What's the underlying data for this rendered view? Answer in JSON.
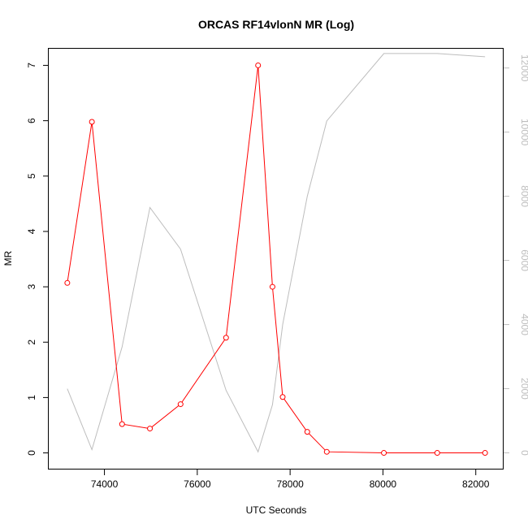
{
  "chart_data": {
    "type": "line",
    "title": "ORCAS RF14vlonN MR (Log)",
    "xlabel": "UTC Seconds",
    "ylabel": "MR",
    "ylabel_right": "",
    "xlim": [
      72800,
      82600
    ],
    "ylim": [
      -0.3,
      7.3
    ],
    "ylim_right": [
      -520,
      12600
    ],
    "x_ticks": [
      "74000",
      "76000",
      "78000",
      "80000",
      "82000"
    ],
    "y_ticks": [
      "0",
      "1",
      "2",
      "3",
      "4",
      "5",
      "6",
      "7"
    ],
    "y_right_ticks": [
      "0",
      "2000",
      "4000",
      "6000",
      "8000",
      "10000",
      "12000"
    ],
    "grid": false,
    "series": [
      {
        "color": "#ff0000",
        "marker": "open-circle",
        "axis": "left",
        "x": [
          73200,
          73730,
          74380,
          74980,
          75640,
          76620,
          77310,
          77620,
          77840,
          78370,
          78790,
          80020,
          81170,
          82200
        ],
        "values": [
          3.07,
          5.98,
          0.52,
          0.44,
          0.88,
          2.08,
          7.0,
          3.0,
          1.01,
          0.38,
          0.02,
          0.0,
          0.0,
          0.0
        ]
      },
      {
        "color": "#bdbdbd",
        "marker": "none",
        "axis": "right",
        "x": [
          73200,
          73730,
          74380,
          74980,
          75640,
          76620,
          77310,
          77620,
          77840,
          78370,
          78790,
          80020,
          81170,
          82200
        ],
        "values": [
          2000,
          100,
          3300,
          7650,
          6350,
          1950,
          30,
          1500,
          4000,
          8000,
          10350,
          12450,
          12450,
          12350
        ]
      }
    ]
  }
}
